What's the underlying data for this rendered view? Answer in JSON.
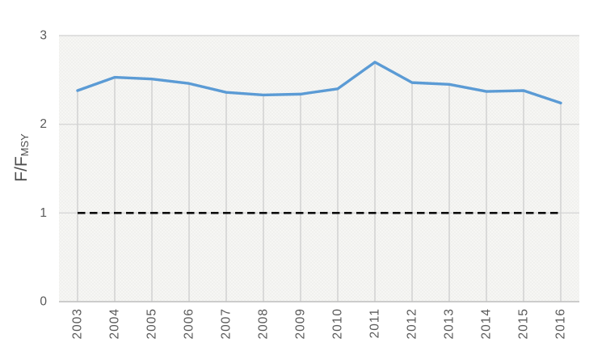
{
  "chart_data": {
    "type": "line",
    "title": "",
    "categories": [
      "2003",
      "2004",
      "2005",
      "2006",
      "2007",
      "2008",
      "2009",
      "2010",
      "2011",
      "2012",
      "2013",
      "2014",
      "2015",
      "2016"
    ],
    "series": [
      {
        "name": "F/Fmsy",
        "color": "#5b9bd5",
        "values": [
          2.38,
          2.53,
          2.51,
          2.46,
          2.36,
          2.33,
          2.34,
          2.4,
          2.7,
          2.47,
          2.45,
          2.37,
          2.38,
          2.24
        ]
      }
    ],
    "reference_line": {
      "value": 1,
      "color": "#0d0d0d",
      "style": "dashed"
    },
    "ylabel": {
      "main": "F/F",
      "sub": "MSY"
    },
    "xlabel": "",
    "yticks": [
      "0",
      "1",
      "2",
      "3"
    ],
    "ylim": [
      0,
      3
    ],
    "legend": "none",
    "grid": {
      "horizontal": true,
      "vertical_drop_lines": true
    },
    "colors": {
      "line": "#5b9bd5",
      "gridline": "#d7d7d7",
      "drop_line": "#d2d2d2",
      "axis_line": "#bdbdbd",
      "tick_label": "#595959",
      "axis_title": "#4d4d4d",
      "reference": "#0d0d0d",
      "plot_fill": "#f6f6f4",
      "plot_dot": "#e9e9e5",
      "background": "#ffffff"
    }
  }
}
